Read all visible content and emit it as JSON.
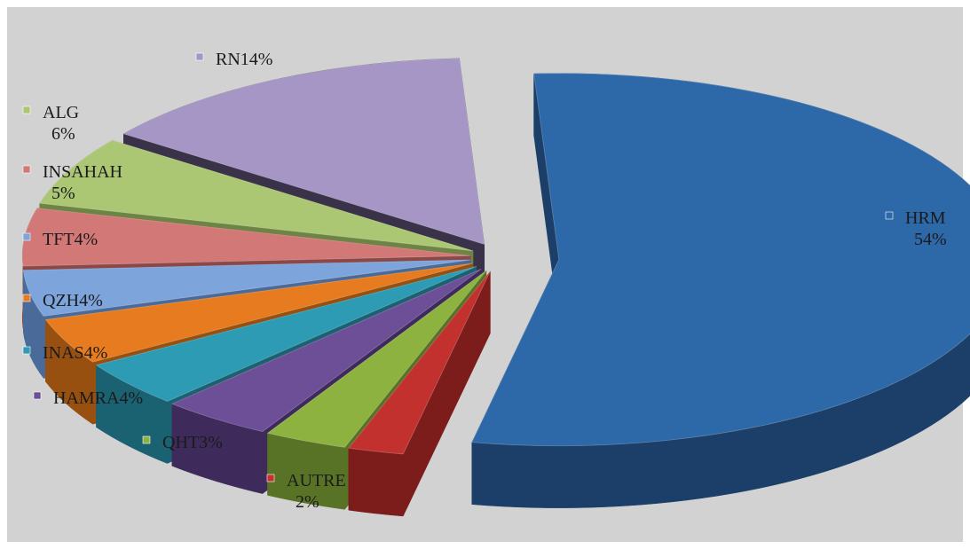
{
  "chart_data": {
    "type": "pie",
    "title": "",
    "slices": [
      {
        "name": "HRM",
        "value": 54,
        "value_text": "54%",
        "color": "#2d68a8",
        "side_color": "#1b3f68"
      },
      {
        "name": "AUTRE",
        "value": 2,
        "value_text": "2%",
        "color": "#c3312e",
        "side_color": "#7c1c1b"
      },
      {
        "name": "QHT",
        "value": 3,
        "value_text": "3%",
        "color": "#8db23f",
        "side_color": "#587326"
      },
      {
        "name": "HAMRA",
        "value": 4,
        "value_text": "4%",
        "color": "#6d4f98",
        "side_color": "#3e2b5c"
      },
      {
        "name": "INAS",
        "value": 4,
        "value_text": "4%",
        "color": "#2d9bb3",
        "side_color": "#1a6171"
      },
      {
        "name": "QZH",
        "value": 4,
        "value_text": "4%",
        "color": "#e77b20",
        "side_color": "#97500f"
      },
      {
        "name": "TFT",
        "value": 4,
        "value_text": "4%",
        "color": "#7ea4dc",
        "side_color": "#4a6a9a"
      },
      {
        "name": "INSAHAH",
        "value": 5,
        "value_text": "5%",
        "color": "#d27877",
        "side_color": "#8c4847"
      },
      {
        "name": "ALG",
        "value": 6,
        "value_text": "6%",
        "color": "#abc774",
        "side_color": "#6d8445"
      },
      {
        "name": "RN",
        "value": 14,
        "value_text": "14%",
        "color": "#a596c6",
        "side_color": "#3a3248"
      }
    ],
    "labels": {
      "HRM": [
        "HRM",
        "54%"
      ],
      "AUTRE": [
        "AUTRE",
        "2%"
      ],
      "QHT": [
        "QHT3%"
      ],
      "HAMRA": [
        "HAMRA4%"
      ],
      "INAS": [
        "INAS4%"
      ],
      "QZH": [
        "QZH4%"
      ],
      "TFT": [
        "TFT4%"
      ],
      "INSAHAH": [
        "INSAHAH",
        "5%"
      ],
      "ALG": [
        "ALG",
        "6%"
      ],
      "RN": [
        "RN14%"
      ]
    },
    "legend": "none",
    "style": "3d-exploded-pie",
    "background_color": "#d2d2d2"
  }
}
